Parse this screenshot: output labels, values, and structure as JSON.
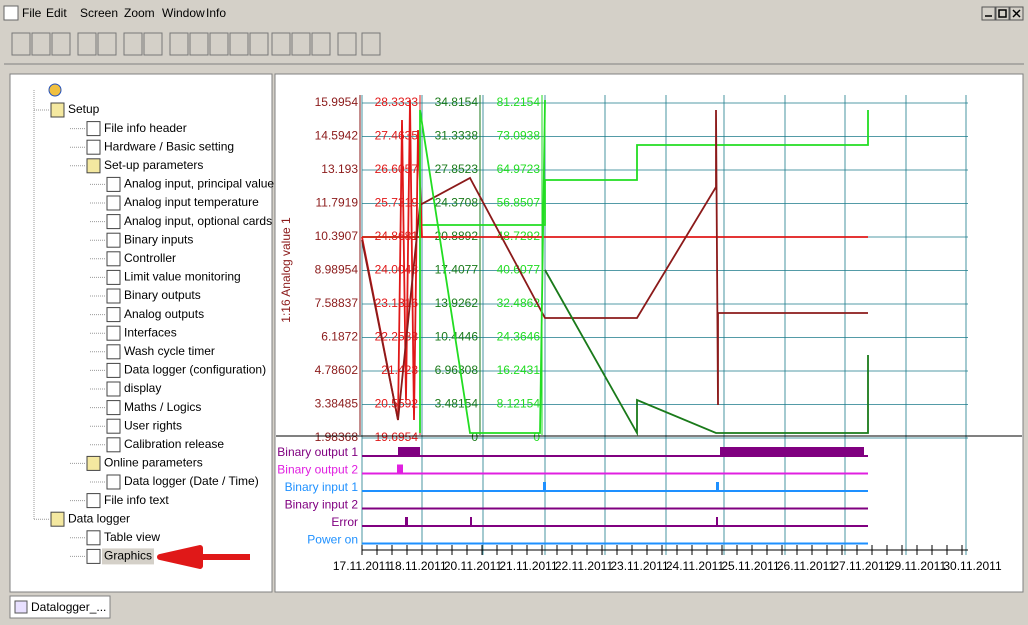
{
  "menu": [
    "File",
    "Edit",
    "Screen",
    "Zoom",
    "Window",
    "Info"
  ],
  "tree": [
    "Setup",
    "File info header",
    "Hardware / Basic setting",
    "Set-up parameters",
    "Analog input, principal value",
    "Analog input temperature",
    "Analog input, optional cards",
    "Binary inputs",
    "Controller",
    "Limit value monitoring",
    "Binary outputs",
    "Analog outputs",
    "Interfaces",
    "Wash cycle timer",
    "Data logger (configuration)",
    "display",
    "Maths / Logics",
    "User rights",
    "Calibration release",
    "Online parameters",
    "Data logger (Date / Time)",
    "File info text",
    "Data logger",
    "Table view",
    "Graphics"
  ],
  "graph": {
    "axis_title": "1:16 Analog value 1",
    "axes": [
      [
        "15.9954",
        "14.5942",
        "13.193",
        "11.7919",
        "10.3907",
        "8.98954",
        "7.58837",
        "6.1872",
        "4.78602",
        "3.38485",
        "1.98368"
      ],
      [
        "28.3333",
        "27.4635",
        "26.6057",
        "25.7319",
        "24.8681",
        "24.0043",
        "23.1316",
        "22.2588",
        "21.423",
        "20.5592",
        "19.6954"
      ],
      [
        "34.8154",
        "31.3338",
        "27.8523",
        "24.3708",
        "20.8892",
        "17.4077",
        "13.9262",
        "10.4446",
        "6.96308",
        "3.48154",
        "0"
      ],
      [
        "81.2154",
        "73.0938",
        "64.9723",
        "56.8507",
        "48.7292",
        "40.6077",
        "32.4862",
        "24.3646",
        "16.2431",
        "8.12154",
        "0"
      ]
    ],
    "binary": [
      "Binary output 1",
      "Binary output 2",
      "Binary input 1",
      "Binary input 2",
      "Error",
      "Power on"
    ],
    "dates": [
      "17.11.2011",
      "18.11.2011",
      "20.11.2011",
      "21.11.2011",
      "22.11.2011",
      "23.11.2011",
      "24.11.2011",
      "25.11.2011",
      "26.11.2011",
      "27.11.2011",
      "29.11.2011",
      "30.11.2011"
    ]
  },
  "tab": "Datalogger_..."
}
